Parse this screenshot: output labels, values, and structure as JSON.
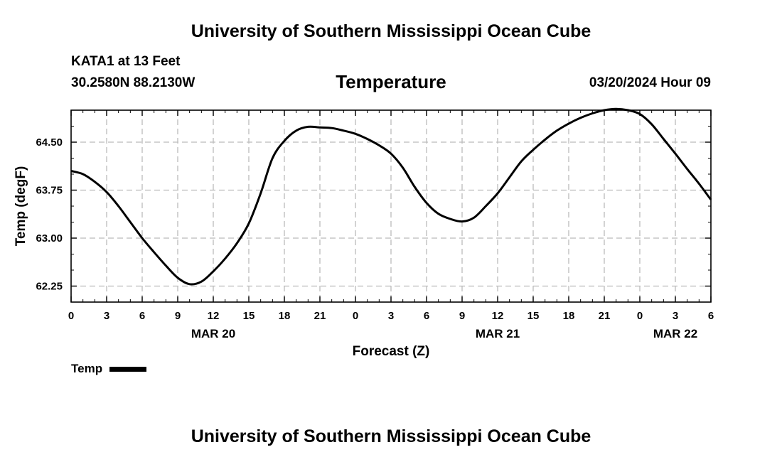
{
  "header": {
    "title_top": "University of Southern Mississippi Ocean Cube",
    "station": "KATA1 at 13 Feet",
    "coords": "30.2580N  88.2130W",
    "chart_title": "Temperature",
    "datetime": "03/20/2024 Hour 09",
    "title_bottom": "University of Southern Mississippi Ocean Cube"
  },
  "legend": {
    "label": "Temp"
  },
  "chart_data": {
    "type": "line",
    "title": "Temperature",
    "xlabel": "Forecast (Z)",
    "ylabel": "Temp (degF)",
    "xlim": [
      0,
      54
    ],
    "ylim": [
      62.0,
      65.0
    ],
    "grid": true,
    "legend_position": "bottom-left",
    "x_tick_labels": [
      "0",
      "3",
      "6",
      "9",
      "12",
      "15",
      "18",
      "21",
      "0",
      "3",
      "6",
      "9",
      "12",
      "15",
      "18",
      "21",
      "0",
      "3",
      "6"
    ],
    "date_labels": [
      {
        "label": "MAR 20",
        "x": 12
      },
      {
        "label": "MAR 21",
        "x": 36
      },
      {
        "label": "MAR 22",
        "x": 51
      }
    ],
    "y_ticks": [
      62.25,
      63.0,
      63.75,
      64.5
    ],
    "y_tick_labels": [
      "62.25",
      "63.00",
      "63.75",
      "64.50"
    ],
    "series": [
      {
        "name": "Temp",
        "color": "#000000",
        "x": [
          0,
          1,
          2,
          3,
          4,
          5,
          6,
          7,
          8,
          9,
          10,
          11,
          12,
          13,
          14,
          15,
          16,
          17,
          18,
          19,
          20,
          21,
          22,
          23,
          24,
          25,
          26,
          27,
          28,
          29,
          30,
          31,
          32,
          33,
          34,
          35,
          36,
          37,
          38,
          39,
          40,
          41,
          42,
          43,
          44,
          45,
          46,
          47,
          48,
          49,
          50,
          51,
          52,
          53,
          54
        ],
        "y": [
          64.05,
          64.0,
          63.88,
          63.72,
          63.5,
          63.25,
          63.0,
          62.78,
          62.57,
          62.38,
          62.28,
          62.32,
          62.48,
          62.68,
          62.92,
          63.23,
          63.7,
          64.25,
          64.52,
          64.68,
          64.74,
          64.73,
          64.72,
          64.68,
          64.63,
          64.55,
          64.45,
          64.32,
          64.1,
          63.8,
          63.55,
          63.38,
          63.3,
          63.26,
          63.32,
          63.5,
          63.7,
          63.95,
          64.2,
          64.38,
          64.54,
          64.68,
          64.79,
          64.88,
          64.95,
          65.0,
          65.02,
          65.0,
          64.94,
          64.78,
          64.55,
          64.32,
          64.08,
          63.85,
          63.6
        ]
      }
    ]
  }
}
